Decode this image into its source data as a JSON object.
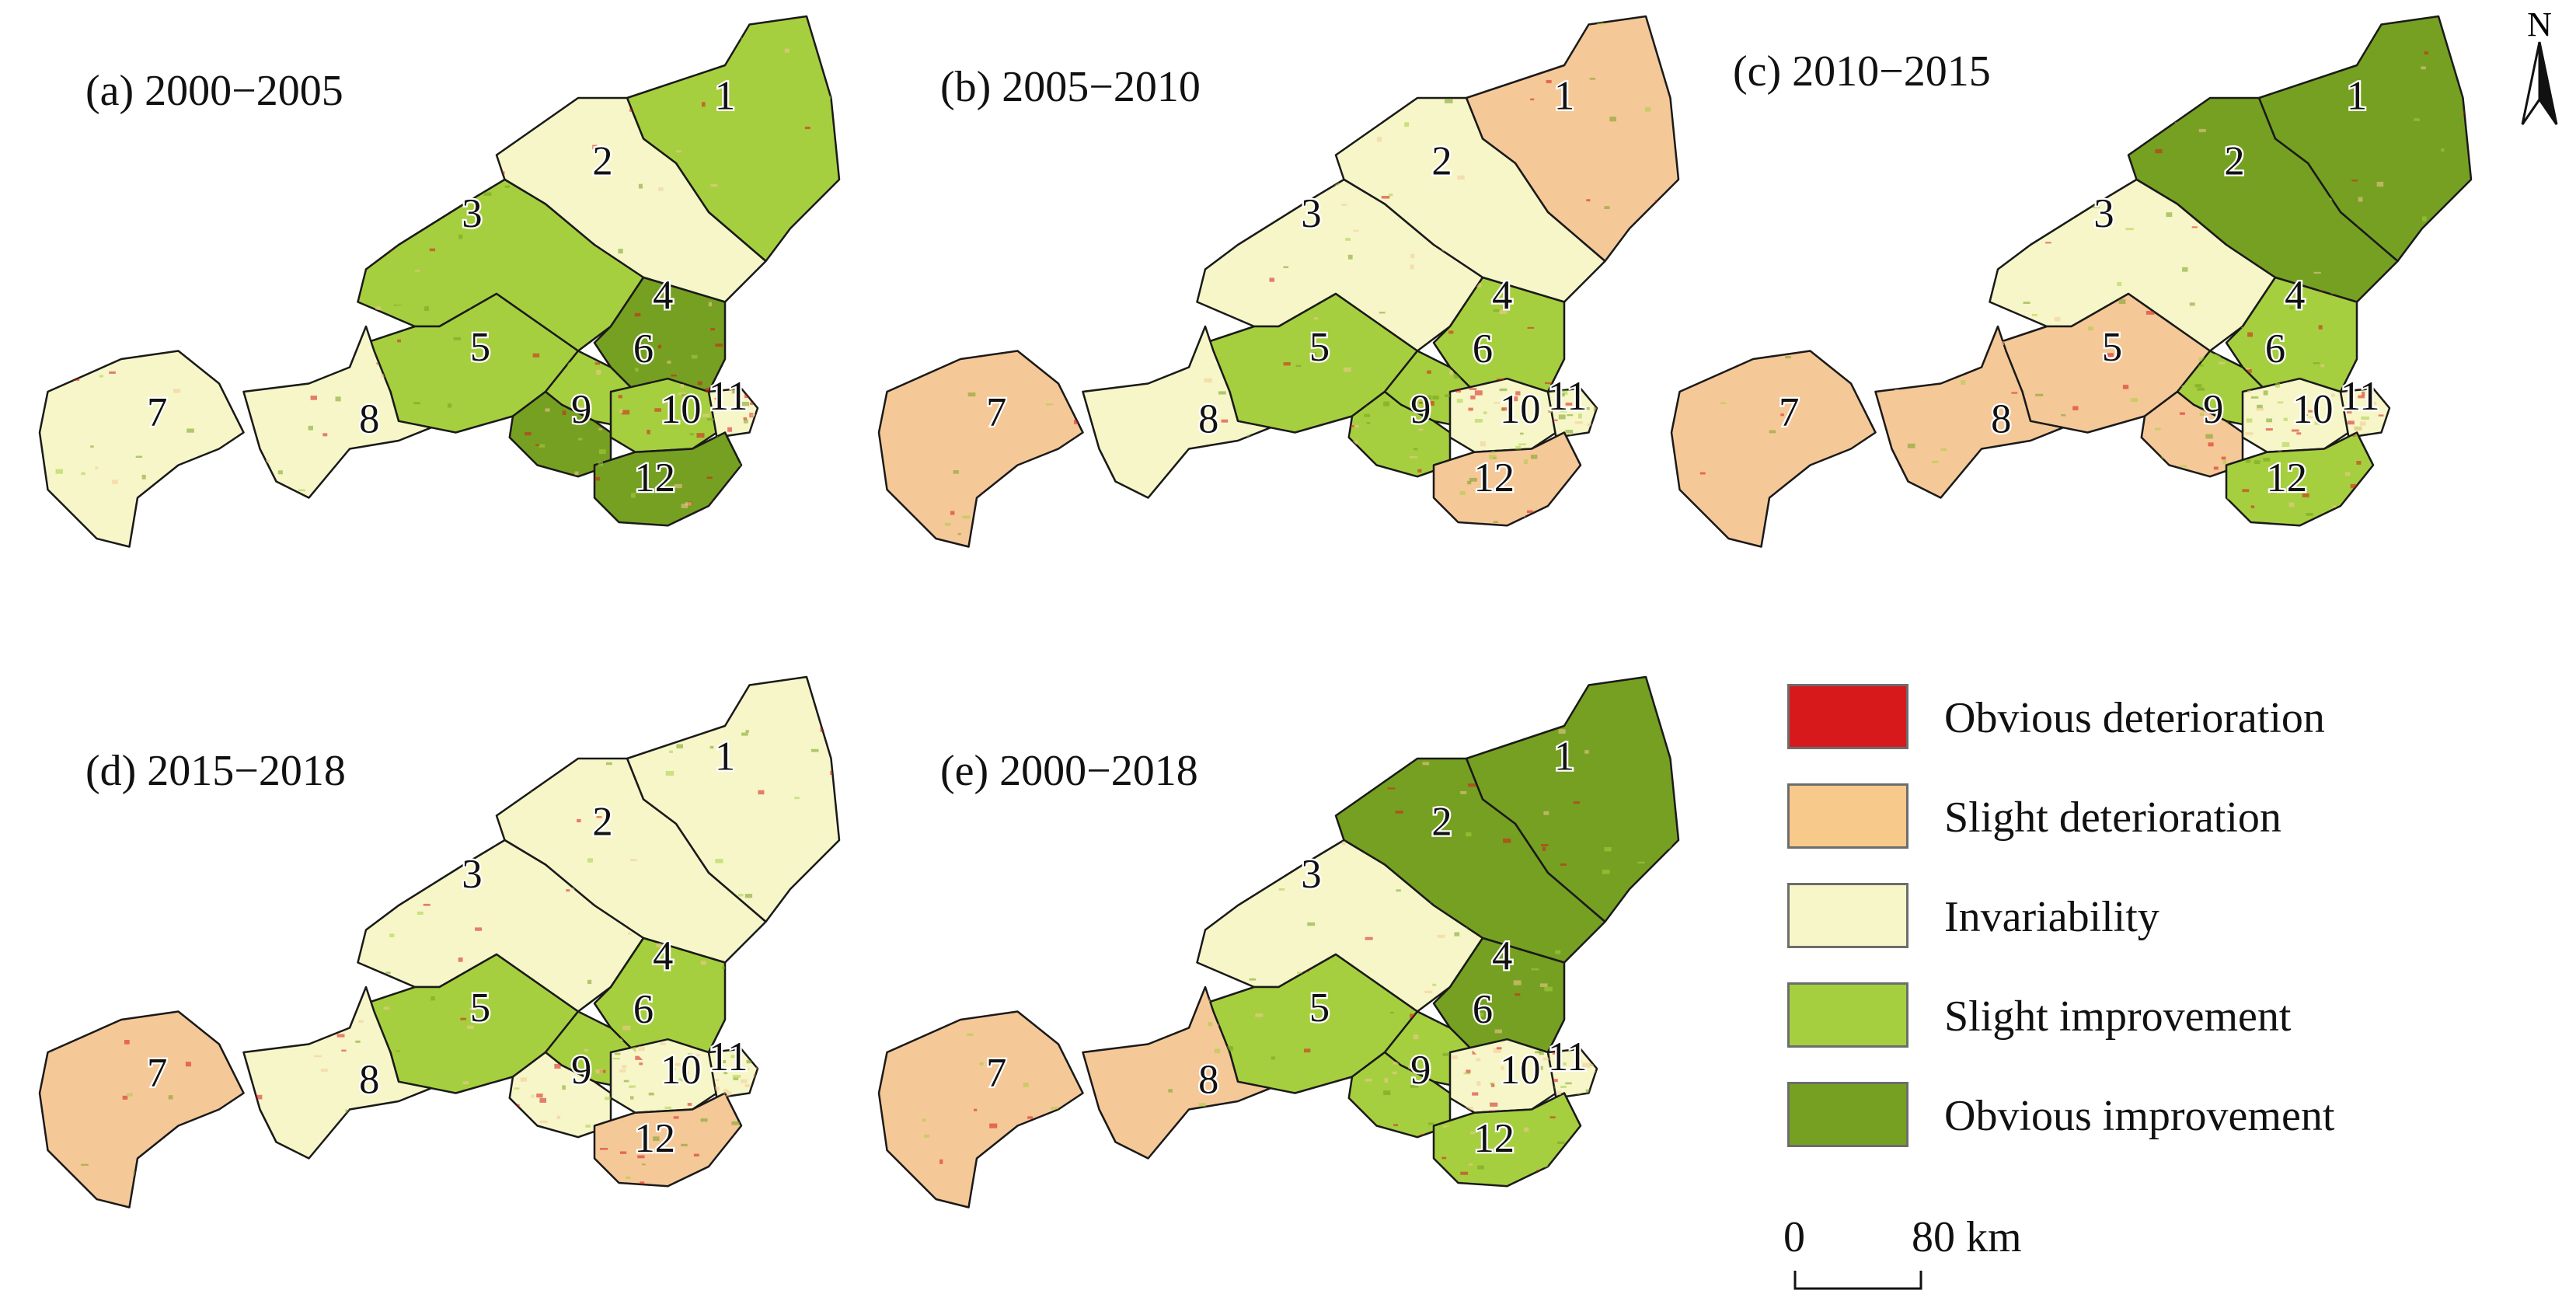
{
  "panels": [
    {
      "id": "a",
      "title": "(a) 2000−2005",
      "dominant": [
        "slight",
        "invariability",
        "slight",
        "obvious",
        "slight",
        "slight",
        "invariability",
        "invariability",
        "obvious",
        "slight",
        "invariability",
        "obvious"
      ]
    },
    {
      "id": "b",
      "title": "(b) 2005−2010",
      "dominant": [
        "slight-deterioration",
        "invariability",
        "invariability",
        "slight",
        "slight",
        "slight",
        "slight-deterioration",
        "invariability",
        "slight",
        "invariability",
        "invariability",
        "slight-deterioration"
      ]
    },
    {
      "id": "c",
      "title": "(c) 2010−2015",
      "dominant": [
        "obvious",
        "obvious",
        "invariability",
        "slight",
        "slight-deterioration",
        "slight",
        "slight-deterioration",
        "slight-deterioration",
        "slight-deterioration",
        "invariability",
        "invariability",
        "slight"
      ]
    },
    {
      "id": "d",
      "title": "(d) 2015−2018",
      "dominant": [
        "invariability",
        "invariability",
        "invariability",
        "slight",
        "slight",
        "slight",
        "slight-deterioration",
        "invariability",
        "invariability",
        "invariability",
        "invariability",
        "slight-deterioration"
      ]
    },
    {
      "id": "e",
      "title": "(e) 2000−2018",
      "dominant": [
        "obvious",
        "obvious",
        "invariability",
        "obvious",
        "slight",
        "slight",
        "slight-deterioration",
        "slight-deterioration",
        "slight",
        "invariability",
        "invariability",
        "slight"
      ]
    }
  ],
  "region_labels": [
    "1",
    "2",
    "3",
    "4",
    "5",
    "6",
    "7",
    "8",
    "9",
    "10",
    "11",
    "12"
  ],
  "legend": {
    "items": [
      {
        "label": "Obvious deterioration",
        "color": "#d7191c"
      },
      {
        "label": "Slight deterioration",
        "color": "#f7c98b"
      },
      {
        "label": "Invariability",
        "color": "#f6f6c8"
      },
      {
        "label": "Slight improvement",
        "color": "#a6cf3f"
      },
      {
        "label": "Obvious improvement",
        "color": "#76a021"
      }
    ]
  },
  "scalebar": {
    "left_label": "0",
    "right_label": "80 km"
  },
  "north_arrow": {
    "label": "N",
    "icon": "north-arrow-icon"
  },
  "colors": {
    "obvious": "#76a021",
    "slight": "#a6cf3f",
    "invariability": "#f6f6c8",
    "slight-deterioration": "#f5c898",
    "obvious-deterioration": "#d7191c",
    "boundary": "#1a1a1a"
  }
}
